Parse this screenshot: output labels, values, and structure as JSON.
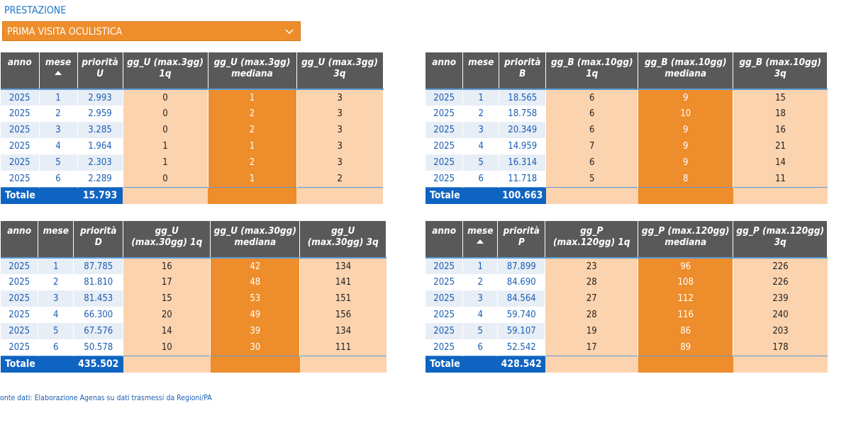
{
  "prestazione_label": "PRESTAZIONE",
  "slicer_value": "PRIMA VISITA OCULISTICA",
  "colors": {
    "accent": "#ee8d2b",
    "light": "#fbd3ae",
    "header": "#595959",
    "blue": "#0f64c2"
  },
  "tables": [
    {
      "headers": [
        "anno",
        "mese",
        "priorità U",
        "gg_U (max.3gg) 1q",
        "gg_U (max.3gg) mediana",
        "gg_U (max.3gg) 3q"
      ],
      "rows": [
        [
          "2025",
          "1",
          "2.993",
          "0",
          "1",
          "3"
        ],
        [
          "2025",
          "2",
          "2.959",
          "0",
          "2",
          "3"
        ],
        [
          "2025",
          "3",
          "3.285",
          "0",
          "2",
          "3"
        ],
        [
          "2025",
          "4",
          "1.964",
          "1",
          "1",
          "3"
        ],
        [
          "2025",
          "5",
          "2.303",
          "1",
          "2",
          "3"
        ],
        [
          "2025",
          "6",
          "2.289",
          "0",
          "1",
          "2"
        ]
      ],
      "total_label": "Totale",
      "total_value": "15.793"
    },
    {
      "headers": [
        "anno",
        "mese",
        "priorità B",
        "gg_B (max.10gg) 1q",
        "gg_B (max.10gg) mediana",
        "gg_B (max.10gg) 3q"
      ],
      "rows": [
        [
          "2025",
          "1",
          "18.565",
          "6",
          "9",
          "15"
        ],
        [
          "2025",
          "2",
          "18.758",
          "6",
          "10",
          "18"
        ],
        [
          "2025",
          "3",
          "20.349",
          "6",
          "9",
          "16"
        ],
        [
          "2025",
          "4",
          "14.959",
          "7",
          "9",
          "21"
        ],
        [
          "2025",
          "5",
          "16.314",
          "6",
          "9",
          "14"
        ],
        [
          "2025",
          "6",
          "11.718",
          "5",
          "8",
          "11"
        ]
      ],
      "total_label": "Totale",
      "total_value": "100.663"
    },
    {
      "headers": [
        "anno",
        "mese",
        "priorità D",
        "gg_U (max.30gg) 1q",
        "gg_U (max.30gg) mediana",
        "gg_U (max.30gg) 3q"
      ],
      "rows": [
        [
          "2025",
          "1",
          "87.785",
          "16",
          "42",
          "134"
        ],
        [
          "2025",
          "2",
          "81.810",
          "17",
          "48",
          "141"
        ],
        [
          "2025",
          "3",
          "81.453",
          "15",
          "53",
          "151"
        ],
        [
          "2025",
          "4",
          "66.300",
          "20",
          "49",
          "156"
        ],
        [
          "2025",
          "5",
          "67.576",
          "14",
          "39",
          "134"
        ],
        [
          "2025",
          "6",
          "50.578",
          "10",
          "30",
          "111"
        ]
      ],
      "total_label": "Totale",
      "total_value": "435.502"
    },
    {
      "headers": [
        "anno",
        "mese",
        "priorità P",
        "gg_P (max.120gg) 1q",
        "gg_P (max.120gg) mediana",
        "gg_P (max.120gg) 3q"
      ],
      "rows": [
        [
          "2025",
          "1",
          "87.899",
          "23",
          "96",
          "226"
        ],
        [
          "2025",
          "2",
          "84.690",
          "28",
          "108",
          "226"
        ],
        [
          "2025",
          "3",
          "84.564",
          "27",
          "112",
          "239"
        ],
        [
          "2025",
          "4",
          "59.740",
          "28",
          "116",
          "240"
        ],
        [
          "2025",
          "5",
          "59.107",
          "19",
          "86",
          "203"
        ],
        [
          "2025",
          "6",
          "52.542",
          "17",
          "89",
          "178"
        ]
      ],
      "total_label": "Totale",
      "total_value": "428.542"
    }
  ],
  "fonte": "onte dati: Elaborazione Agenas su dati trasmessi da Regioni/PA"
}
